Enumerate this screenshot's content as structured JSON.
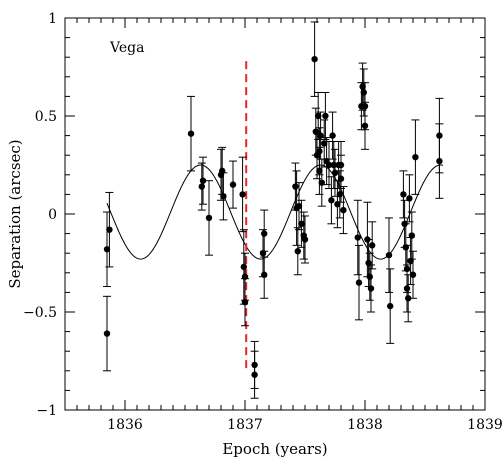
{
  "chart_data": {
    "type": "scatter",
    "title": "",
    "annotation": "Vega",
    "xlabel": "Epoch (years)",
    "ylabel": "Separation (arcsec)",
    "xlim": [
      1835.5,
      1839.0
    ],
    "ylim": [
      -1.0,
      1.0
    ],
    "xticks": [
      1836,
      1837,
      1838,
      1839
    ],
    "yticks": [
      -1,
      -0.5,
      0,
      0.5,
      1
    ],
    "xtick_labels": [
      "1836",
      "1837",
      "1838",
      "1839"
    ],
    "ytick_labels": [
      "−1",
      "−0.5",
      "0",
      "0.5",
      "1"
    ],
    "grid": false,
    "marker_color": "#000000",
    "reference_line": {
      "x": 1837.01,
      "y_range": [
        -0.8,
        0.78
      ],
      "color": "#e8262a",
      "style": "dashed"
    },
    "model_curve": {
      "type": "sinusoid",
      "period_years": 1.0,
      "amplitude": 0.24,
      "offset": 0.01,
      "peak_epoch": 1836.63,
      "x_range": [
        1835.85,
        1838.65
      ]
    },
    "observations": [
      {
        "x": 1835.85,
        "y": -0.18,
        "err": 0.19
      },
      {
        "x": 1835.85,
        "y": -0.61,
        "err": 0.19
      },
      {
        "x": 1835.87,
        "y": -0.08,
        "err": 0.19
      },
      {
        "x": 1836.55,
        "y": 0.41,
        "err": 0.19
      },
      {
        "x": 1836.64,
        "y": 0.14,
        "err": 0.12
      },
      {
        "x": 1836.65,
        "y": 0.17,
        "err": 0.12
      },
      {
        "x": 1836.7,
        "y": -0.02,
        "err": 0.19
      },
      {
        "x": 1836.8,
        "y": 0.2,
        "err": 0.13
      },
      {
        "x": 1836.81,
        "y": 0.22,
        "err": 0.12
      },
      {
        "x": 1836.82,
        "y": 0.09,
        "err": 0.12
      },
      {
        "x": 1836.9,
        "y": 0.15,
        "err": 0.12
      },
      {
        "x": 1836.98,
        "y": 0.1,
        "err": 0.19
      },
      {
        "x": 1836.99,
        "y": -0.27,
        "err": 0.19
      },
      {
        "x": 1837.0,
        "y": -0.45,
        "err": 0.12
      },
      {
        "x": 1837.0,
        "y": -0.32,
        "err": 0.12
      },
      {
        "x": 1837.08,
        "y": -0.77,
        "err": 0.12
      },
      {
        "x": 1837.08,
        "y": -0.82,
        "err": 0.12
      },
      {
        "x": 1837.15,
        "y": -0.2,
        "err": 0.12
      },
      {
        "x": 1837.16,
        "y": -0.1,
        "err": 0.12
      },
      {
        "x": 1837.16,
        "y": -0.31,
        "err": 0.12
      },
      {
        "x": 1837.42,
        "y": 0.14,
        "err": 0.12
      },
      {
        "x": 1837.43,
        "y": 0.03,
        "err": 0.19
      },
      {
        "x": 1837.44,
        "y": -0.19,
        "err": 0.12
      },
      {
        "x": 1837.45,
        "y": 0.04,
        "err": 0.12
      },
      {
        "x": 1837.47,
        "y": -0.05,
        "err": 0.12
      },
      {
        "x": 1837.49,
        "y": -0.11,
        "err": 0.12
      },
      {
        "x": 1837.5,
        "y": -0.13,
        "err": 0.12
      },
      {
        "x": 1837.58,
        "y": 0.79,
        "err": 0.19
      },
      {
        "x": 1837.59,
        "y": 0.42,
        "err": 0.12
      },
      {
        "x": 1837.6,
        "y": 0.3,
        "err": 0.12
      },
      {
        "x": 1837.61,
        "y": 0.5,
        "err": 0.12
      },
      {
        "x": 1837.62,
        "y": 0.32,
        "err": 0.12
      },
      {
        "x": 1837.62,
        "y": 0.22,
        "err": 0.12
      },
      {
        "x": 1837.63,
        "y": 0.4,
        "err": 0.12
      },
      {
        "x": 1837.64,
        "y": 0.16,
        "err": 0.12
      },
      {
        "x": 1837.66,
        "y": 0.36,
        "err": 0.12
      },
      {
        "x": 1837.67,
        "y": 0.5,
        "err": 0.12
      },
      {
        "x": 1837.68,
        "y": 0.27,
        "err": 0.12
      },
      {
        "x": 1837.7,
        "y": 0.25,
        "err": 0.12
      },
      {
        "x": 1837.72,
        "y": 0.07,
        "err": 0.12
      },
      {
        "x": 1837.73,
        "y": 0.4,
        "err": 0.12
      },
      {
        "x": 1837.74,
        "y": 0.25,
        "err": 0.12
      },
      {
        "x": 1837.75,
        "y": 0.21,
        "err": 0.12
      },
      {
        "x": 1837.77,
        "y": 0.05,
        "err": 0.12
      },
      {
        "x": 1837.78,
        "y": 0.25,
        "err": 0.12
      },
      {
        "x": 1837.79,
        "y": 0.1,
        "err": 0.12
      },
      {
        "x": 1837.8,
        "y": 0.25,
        "err": 0.12
      },
      {
        "x": 1837.8,
        "y": 0.18,
        "err": 0.12
      },
      {
        "x": 1837.82,
        "y": 0.02,
        "err": 0.12
      },
      {
        "x": 1837.94,
        "y": -0.12,
        "err": 0.19
      },
      {
        "x": 1837.95,
        "y": -0.35,
        "err": 0.19
      },
      {
        "x": 1837.97,
        "y": 0.55,
        "err": 0.12
      },
      {
        "x": 1837.98,
        "y": 0.65,
        "err": 0.12
      },
      {
        "x": 1837.99,
        "y": 0.62,
        "err": 0.12
      },
      {
        "x": 1838.0,
        "y": 0.55,
        "err": 0.12
      },
      {
        "x": 1838.0,
        "y": 0.45,
        "err": 0.12
      },
      {
        "x": 1838.02,
        "y": -0.13,
        "err": 0.19
      },
      {
        "x": 1838.03,
        "y": -0.25,
        "err": 0.12
      },
      {
        "x": 1838.04,
        "y": -0.32,
        "err": 0.12
      },
      {
        "x": 1838.05,
        "y": -0.38,
        "err": 0.12
      },
      {
        "x": 1838.06,
        "y": -0.16,
        "err": 0.12
      },
      {
        "x": 1838.2,
        "y": -0.21,
        "err": 0.19
      },
      {
        "x": 1838.21,
        "y": -0.47,
        "err": 0.19
      },
      {
        "x": 1838.32,
        "y": 0.1,
        "err": 0.12
      },
      {
        "x": 1838.33,
        "y": -0.05,
        "err": 0.12
      },
      {
        "x": 1838.34,
        "y": -0.17,
        "err": 0.12
      },
      {
        "x": 1838.35,
        "y": -0.28,
        "err": 0.12
      },
      {
        "x": 1838.35,
        "y": -0.38,
        "err": 0.12
      },
      {
        "x": 1838.36,
        "y": -0.43,
        "err": 0.12
      },
      {
        "x": 1838.37,
        "y": 0.08,
        "err": 0.12
      },
      {
        "x": 1838.38,
        "y": -0.24,
        "err": 0.12
      },
      {
        "x": 1838.39,
        "y": -0.11,
        "err": 0.12
      },
      {
        "x": 1838.4,
        "y": -0.31,
        "err": 0.12
      },
      {
        "x": 1838.42,
        "y": 0.29,
        "err": 0.19
      },
      {
        "x": 1838.62,
        "y": 0.4,
        "err": 0.19
      },
      {
        "x": 1838.62,
        "y": 0.27,
        "err": 0.19
      }
    ]
  }
}
